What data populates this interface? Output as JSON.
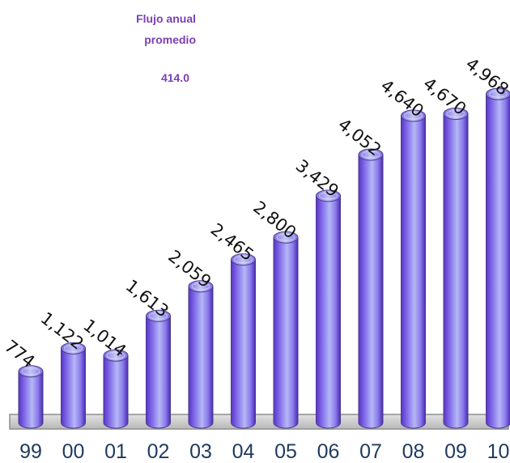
{
  "annotation": {
    "title": "Flujo anual promedio",
    "value": "414.0",
    "color": "#7b3fb5"
  },
  "chart_data": {
    "type": "bar",
    "title": "",
    "xlabel": "",
    "ylabel": "",
    "categories": [
      "99",
      "00",
      "01",
      "02",
      "03",
      "04",
      "05",
      "06",
      "07",
      "08",
      "09",
      "10"
    ],
    "values": [
      774,
      1122,
      1014,
      1613,
      2059,
      2465,
      2800,
      3429,
      4052,
      4640,
      4670,
      4968
    ],
    "value_labels": [
      "774",
      "1,122",
      "1,014",
      "1,613",
      "2,059",
      "2,465",
      "2,800",
      "3,429",
      "4,052",
      "4,640",
      "4,670",
      "4,968"
    ],
    "ylim": [
      0,
      5000
    ],
    "grid": false,
    "legend": "none",
    "bar_style": "3d-cylinder",
    "colors": {
      "bar_light": "#b6b8f4",
      "bar_mid": "#8a78ee",
      "bar_dark": "#5a34c8",
      "floor": "#c9c9c9",
      "floor_edge": "#8e8e8e",
      "tick_text": "#1f3a5f",
      "label_text": "#111111"
    }
  }
}
